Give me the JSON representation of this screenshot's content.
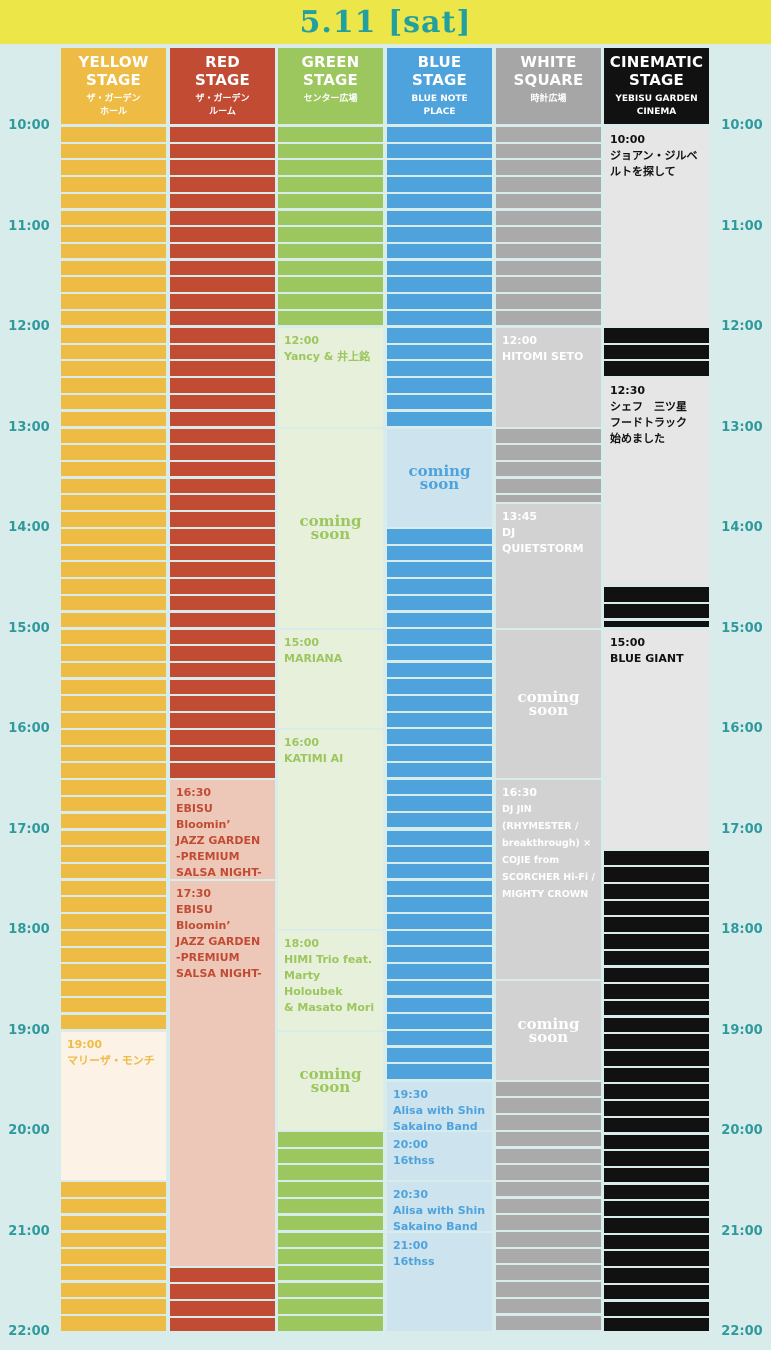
{
  "date_title": "5.11 [sat]",
  "time_labels": [
    "10:00",
    "11:00",
    "12:00",
    "13:00",
    "14:00",
    "15:00",
    "16:00",
    "17:00",
    "18:00",
    "19:00",
    "20:00",
    "21:00",
    "22:00"
  ],
  "stages": [
    {
      "key": "yellow",
      "name": "YELLOW\nSTAGE",
      "sub": "ザ・ガーデン\nホール",
      "header_color": "#eebb45",
      "stripe_color": "#eebb45",
      "block_bg": "#fdf2e6",
      "block_text": "#eebb45",
      "stripes": [
        [
          10,
          12
        ],
        [
          12,
          13
        ],
        [
          13,
          14
        ],
        [
          14,
          15
        ],
        [
          15,
          16
        ],
        [
          16,
          17
        ],
        [
          17,
          18
        ],
        [
          18,
          19
        ],
        [
          20.5,
          21
        ],
        [
          21,
          22
        ]
      ],
      "blocks": [
        {
          "start": 19,
          "end": 20.5,
          "time": "19:00",
          "title": "マリーザ・モンチ"
        }
      ]
    },
    {
      "key": "red",
      "name": "RED\nSTAGE",
      "sub": "ザ・ガーデン\nルーム",
      "header_color": "#c24b34",
      "stripe_color": "#c24b34",
      "block_bg": "#edc8b9",
      "block_text": "#c24b34",
      "stripes": [
        [
          10,
          12
        ],
        [
          12,
          13
        ],
        [
          13,
          14
        ],
        [
          14,
          15
        ],
        [
          15,
          16
        ],
        [
          16,
          16.5
        ],
        [
          21.35,
          22
        ]
      ],
      "blocks": [
        {
          "start": 16.5,
          "end": 17.5,
          "time": "16:30",
          "title": "EBISU Bloomin’\nJAZZ GARDEN\n-PREMIUM\nSALSA NIGHT-\n[Lesson]"
        },
        {
          "start": 17.5,
          "end": 21.35,
          "time": "17:30",
          "title": "EBISU Bloomin’\nJAZZ GARDEN\n-PREMIUM\nSALSA NIGHT-"
        }
      ]
    },
    {
      "key": "green",
      "name": "GREEN\nSTAGE",
      "sub": "センター広場",
      "header_color": "#9cc65e",
      "stripe_color": "#9cc65e",
      "block_bg": "#e6f0da",
      "block_text": "#9cc65e",
      "stripes": [
        [
          10,
          12
        ],
        [
          20,
          21
        ],
        [
          21,
          22
        ]
      ],
      "blocks": [
        {
          "start": 12,
          "end": 13,
          "time": "12:00",
          "title": "Yancy & 井上銘"
        },
        {
          "start": 15,
          "end": 16,
          "time": "15:00",
          "title": "MARIANA"
        },
        {
          "start": 16,
          "end": 18,
          "time": "16:00",
          "title": "KATIMI AI"
        },
        {
          "start": 18,
          "end": 19,
          "time": "18:00",
          "title": "HIMI Trio feat.\nMarty Holoubek\n& Masato Mori"
        }
      ],
      "soon": [
        {
          "start": 13,
          "end": 15,
          "label": "coming\nsoon"
        },
        {
          "start": 19,
          "end": 20,
          "label": "coming\nsoon"
        }
      ]
    },
    {
      "key": "blue",
      "name": "BLUE\nSTAGE",
      "sub": "BLUE NOTE\nPLACE",
      "header_color": "#4ea3dc",
      "stripe_color": "#4ea3dc",
      "block_bg": "#cde3ee",
      "block_text": "#4ea3dc",
      "stripes": [
        [
          10,
          12
        ],
        [
          12,
          13
        ],
        [
          14,
          17
        ],
        [
          17,
          19.5
        ]
      ],
      "blocks": [
        {
          "start": 19.5,
          "end": 20,
          "time": "19:30",
          "title": "Alisa with Shin\nSakaino Band"
        },
        {
          "start": 20,
          "end": 20.5,
          "time": "20:00",
          "title": "16thss"
        },
        {
          "start": 20.5,
          "end": 21,
          "time": "20:30",
          "title": "Alisa with Shin\nSakaino Band"
        },
        {
          "start": 21,
          "end": 22,
          "time": "21:00",
          "title": "16thss"
        }
      ],
      "soon": [
        {
          "start": 13,
          "end": 14,
          "label": "coming\nsoon"
        }
      ]
    },
    {
      "key": "white",
      "name": "WHITE\nSQUARE",
      "sub": "時計広場",
      "header_color": "#a6a6a6",
      "stripe_color": "#aaaaaa",
      "block_bg": "#d2d2d2",
      "block_text": "#ffffff",
      "stripes": [
        [
          10,
          12
        ],
        [
          13,
          13.75
        ],
        [
          19.5,
          22
        ]
      ],
      "blocks": [
        {
          "start": 12,
          "end": 13,
          "time": "12:00",
          "title": "HITOMI SETO"
        },
        {
          "start": 13.75,
          "end": 15,
          "time": "13:45",
          "title": "DJ\nQUIETSTORM"
        },
        {
          "start": 16.5,
          "end": 18.5,
          "time": "16:30",
          "title": "DJ JIN\n(RHYMESTER /\nbreakthrough) ×\nCOJIE  from\nSCORCHER Hi-Fi /\nMIGHTY CROWN",
          "small": true
        }
      ],
      "soon": [
        {
          "start": 15,
          "end": 16.5,
          "label": "coming\nsoon"
        },
        {
          "start": 18.5,
          "end": 19.5,
          "label": "coming\nsoon"
        }
      ]
    },
    {
      "key": "cinematic",
      "name": "CINEMATIC\nSTAGE",
      "sub": "YEBISU GARDEN\nCINEMA",
      "header_color": "#111111",
      "stripe_color": "#111111",
      "block_bg": "#e6e6e6",
      "block_text": "#111111",
      "stripes": [
        [
          12,
          12.5
        ],
        [
          14.58,
          15
        ],
        [
          17.2,
          22
        ]
      ],
      "blocks": [
        {
          "start": 10,
          "end": 12,
          "time": "10:00",
          "title": "ジョアン・ジルベ\nルトを探して"
        },
        {
          "start": 12.5,
          "end": 14.58,
          "time": "12:30",
          "title": "シェフ　三ツ星\nフードトラック\n始めました"
        },
        {
          "start": 15,
          "end": 17.2,
          "time": "15:00",
          "title": "BLUE GIANT"
        }
      ]
    }
  ]
}
